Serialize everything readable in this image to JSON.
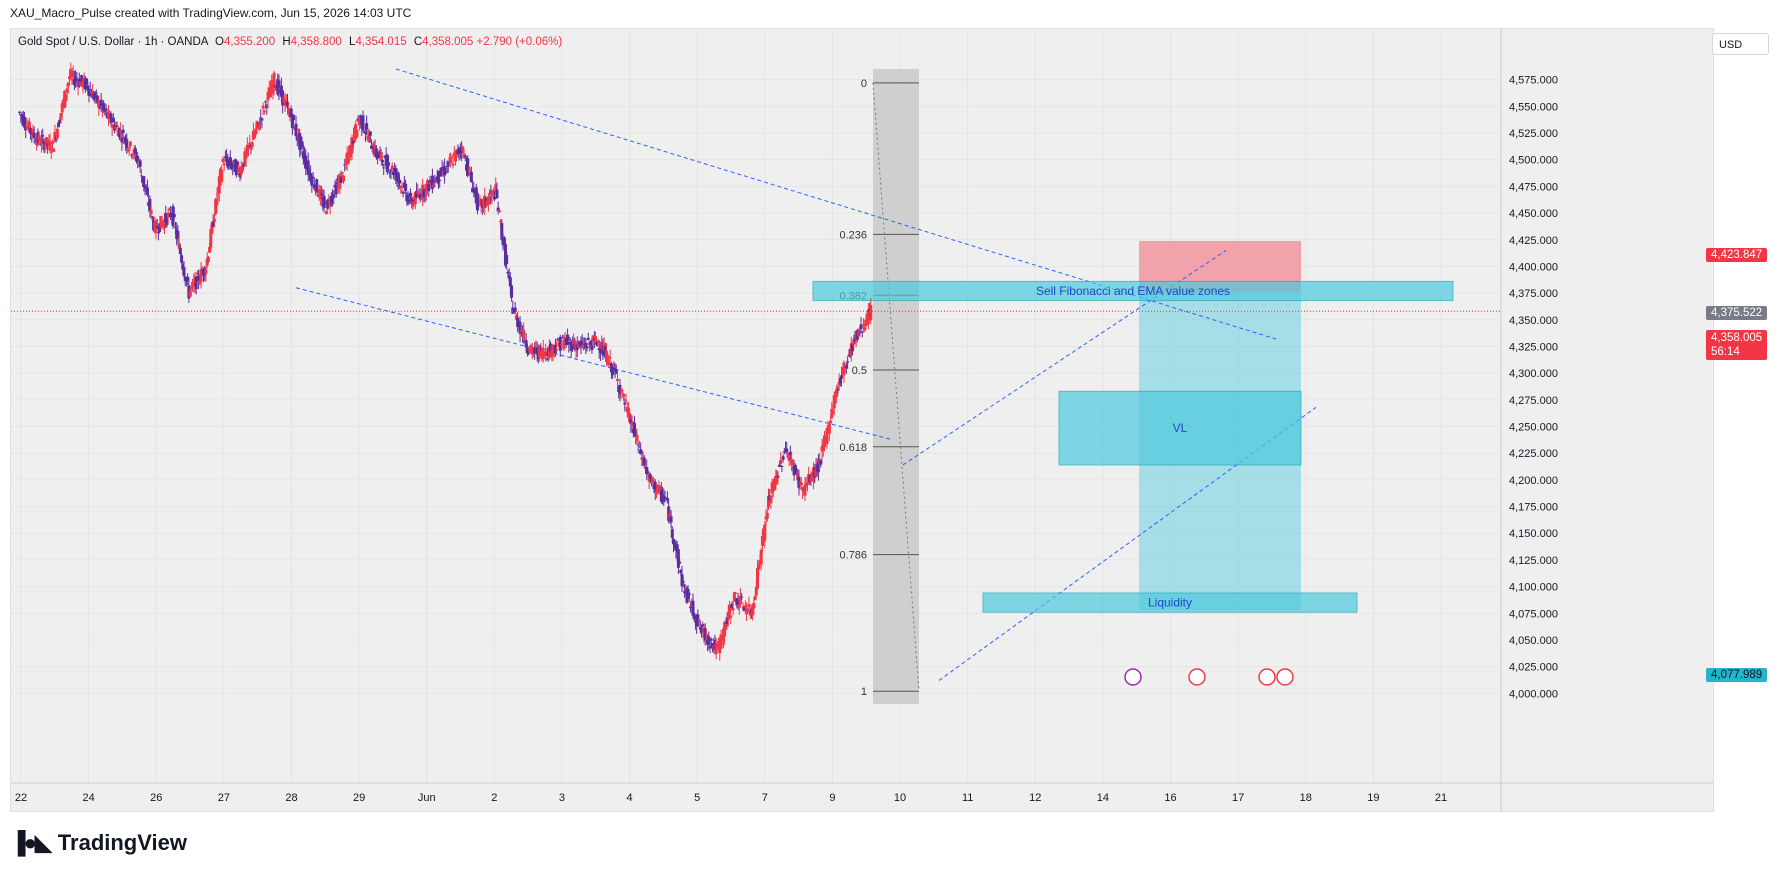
{
  "header": {
    "attribution": "XAU_Macro_Pulse created with TradingView.com, Jun 15, 2026 14:03 UTC"
  },
  "legend": {
    "symbol": "Gold Spot / U.S. Dollar · 1h · OANDA",
    "o_label": "O",
    "o": "4,355.200",
    "h_label": "H",
    "h": "4,358.800",
    "l_label": "L",
    "l": "4,354.015",
    "c_label": "C",
    "c": "4,358.005",
    "change": "+2.790 (+0.06%)"
  },
  "currency": "USD",
  "price_tags": {
    "target": "4,423.847",
    "sell_zone": "4,375.522",
    "last": "4,358.005",
    "countdown": "56:14",
    "stop": "4,077.989"
  },
  "logo": "TradingView",
  "colors": {
    "bull": "#f23645",
    "bear": "#5b2ca0",
    "zone": "#4dc9dd",
    "red_zone": "#f28e98",
    "trend": "#2962ff"
  },
  "chart_data": {
    "type": "candlestick",
    "symbol": "XAUUSD",
    "timeframe": "1h",
    "y_axis": {
      "ticks": [
        "4,000.000",
        "4,025.000",
        "4,050.000",
        "4,075.000",
        "4,100.000",
        "4,125.000",
        "4,150.000",
        "4,175.000",
        "4,200.000",
        "4,225.000",
        "4,250.000",
        "4,275.000",
        "4,300.000",
        "4,325.000",
        "4,350.000",
        "4,375.000",
        "4,400.000",
        "4,425.000",
        "4,450.000",
        "4,475.000",
        "4,500.000",
        "4,525.000",
        "4,550.000",
        "4,575.000"
      ],
      "range": [
        3990,
        4600
      ]
    },
    "x_axis": {
      "labels": [
        "22",
        "24",
        "26",
        "27",
        "28",
        "29",
        "Jun",
        "2",
        "3",
        "4",
        "5",
        "7",
        "9",
        "10",
        "11",
        "12",
        "14",
        "16",
        "17",
        "18",
        "19",
        "21"
      ]
    },
    "price_path": [
      [
        0,
        4545
      ],
      [
        1,
        4520
      ],
      [
        2,
        4512
      ],
      [
        3,
        4578
      ],
      [
        4,
        4570
      ],
      [
        5,
        4545
      ],
      [
        6,
        4525
      ],
      [
        7,
        4500
      ],
      [
        8,
        4435
      ],
      [
        9,
        4450
      ],
      [
        10,
        4375
      ],
      [
        11,
        4400
      ],
      [
        12,
        4500
      ],
      [
        13,
        4490
      ],
      [
        14,
        4530
      ],
      [
        15,
        4575
      ],
      [
        16,
        4540
      ],
      [
        17,
        4490
      ],
      [
        18,
        4455
      ],
      [
        19,
        4485
      ],
      [
        20,
        4540
      ],
      [
        21,
        4505
      ],
      [
        22,
        4490
      ],
      [
        23,
        4460
      ],
      [
        24,
        4475
      ],
      [
        25,
        4490
      ],
      [
        26,
        4512
      ],
      [
        27,
        4455
      ],
      [
        28,
        4470
      ],
      [
        29,
        4360
      ],
      [
        30,
        4320
      ],
      [
        31,
        4320
      ],
      [
        32,
        4330
      ],
      [
        33,
        4325
      ],
      [
        34,
        4330
      ],
      [
        35,
        4300
      ],
      [
        36,
        4250
      ],
      [
        37,
        4200
      ],
      [
        38,
        4180
      ],
      [
        39,
        4100
      ],
      [
        40,
        4060
      ],
      [
        41,
        4040
      ],
      [
        42,
        4090
      ],
      [
        43,
        4075
      ],
      [
        44,
        4180
      ],
      [
        45,
        4230
      ],
      [
        46,
        4190
      ],
      [
        47,
        4215
      ],
      [
        48,
        4285
      ],
      [
        49,
        4330
      ],
      [
        50,
        4358
      ]
    ],
    "x_range": [
      0,
      84
    ],
    "last_price": 4358.005,
    "fibonacci": {
      "levels": [
        {
          "label": "0",
          "price": 4572
        },
        {
          "label": "0.236",
          "price": 4430
        },
        {
          "label": "0.382",
          "price": 4373
        },
        {
          "label": "0.5",
          "price": 4303
        },
        {
          "label": "0.618",
          "price": 4231
        },
        {
          "label": "0.786",
          "price": 4130
        },
        {
          "label": "1",
          "price": 4002
        }
      ]
    },
    "zones": [
      {
        "label": "Sell Fibonacci and EMA value zones",
        "top": 4386,
        "bottom": 4368
      },
      {
        "label": "VL",
        "top": 4283,
        "bottom": 4214
      },
      {
        "label": "Liquidity",
        "top": 4094,
        "bottom": 4076
      }
    ],
    "position": {
      "entry": 4375.522,
      "target_top": 4423.847,
      "stop_bottom": 4077.989
    },
    "annotations": [
      "Sell Fibonacci and EMA value zones",
      "VL",
      "Liquidity"
    ]
  }
}
